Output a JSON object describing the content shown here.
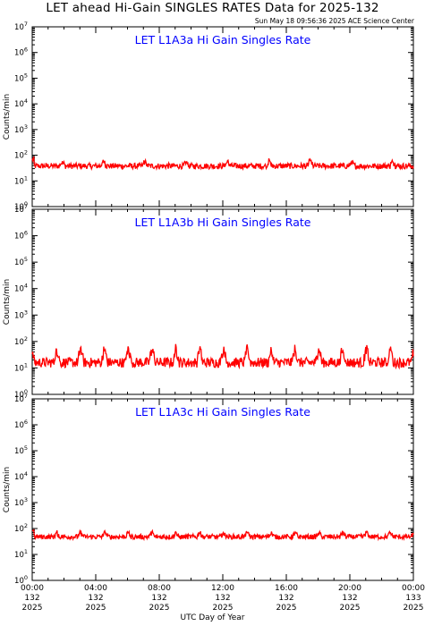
{
  "title": "LET ahead Hi-Gain SINGLES RATES Data for 2025-132",
  "timestamp": "Sun May 18 09:56:36 2025 ACE Science Center",
  "xlabel": "UTC Day of Year",
  "colors": {
    "series": "#ff0000",
    "panel_title": "#0000ff",
    "axes": "#000000"
  },
  "chart_data": [
    {
      "type": "line",
      "title": "LET L1A3a Hi Gain Singles Rate",
      "ylabel": "Counts/min",
      "yscale": "log",
      "ylim": [
        1,
        10000000
      ],
      "xlim_hours": [
        0,
        24
      ],
      "baseline": 38,
      "noise": 0.12,
      "spike_amp": 1.6,
      "spike_period_h": 2.6,
      "spike_start_h": 1.9
    },
    {
      "type": "line",
      "title": "LET L1A3b Hi Gain Singles Rate",
      "ylabel": "Counts/min",
      "yscale": "log",
      "ylim": [
        1,
        10000000
      ],
      "xlim_hours": [
        0,
        24
      ],
      "baseline": 16,
      "noise": 0.2,
      "spike_amp": 3.6,
      "spike_period_h": 1.5,
      "spike_start_h": 1.55
    },
    {
      "type": "line",
      "title": "LET L1A3c Hi Gain Singles Rate",
      "ylabel": "Counts/min",
      "yscale": "log",
      "ylim": [
        1,
        10000000
      ],
      "xlim_hours": [
        0,
        24
      ],
      "baseline": 48,
      "noise": 0.1,
      "spike_amp": 1.5,
      "spike_period_h": 1.5,
      "spike_start_h": 1.55
    }
  ],
  "xticks": [
    {
      "time": "00:00",
      "doy": "132",
      "year": "2025"
    },
    {
      "time": "04:00",
      "doy": "132",
      "year": "2025"
    },
    {
      "time": "08:00",
      "doy": "132",
      "year": "2025"
    },
    {
      "time": "12:00",
      "doy": "132",
      "year": "2025"
    },
    {
      "time": "16:00",
      "doy": "132",
      "year": "2025"
    },
    {
      "time": "20:00",
      "doy": "132",
      "year": "2025"
    },
    {
      "time": "00:00",
      "doy": "133",
      "year": "2025"
    }
  ],
  "ytick_exponents": [
    "0",
    "1",
    "2",
    "3",
    "4",
    "5",
    "6",
    "7"
  ]
}
